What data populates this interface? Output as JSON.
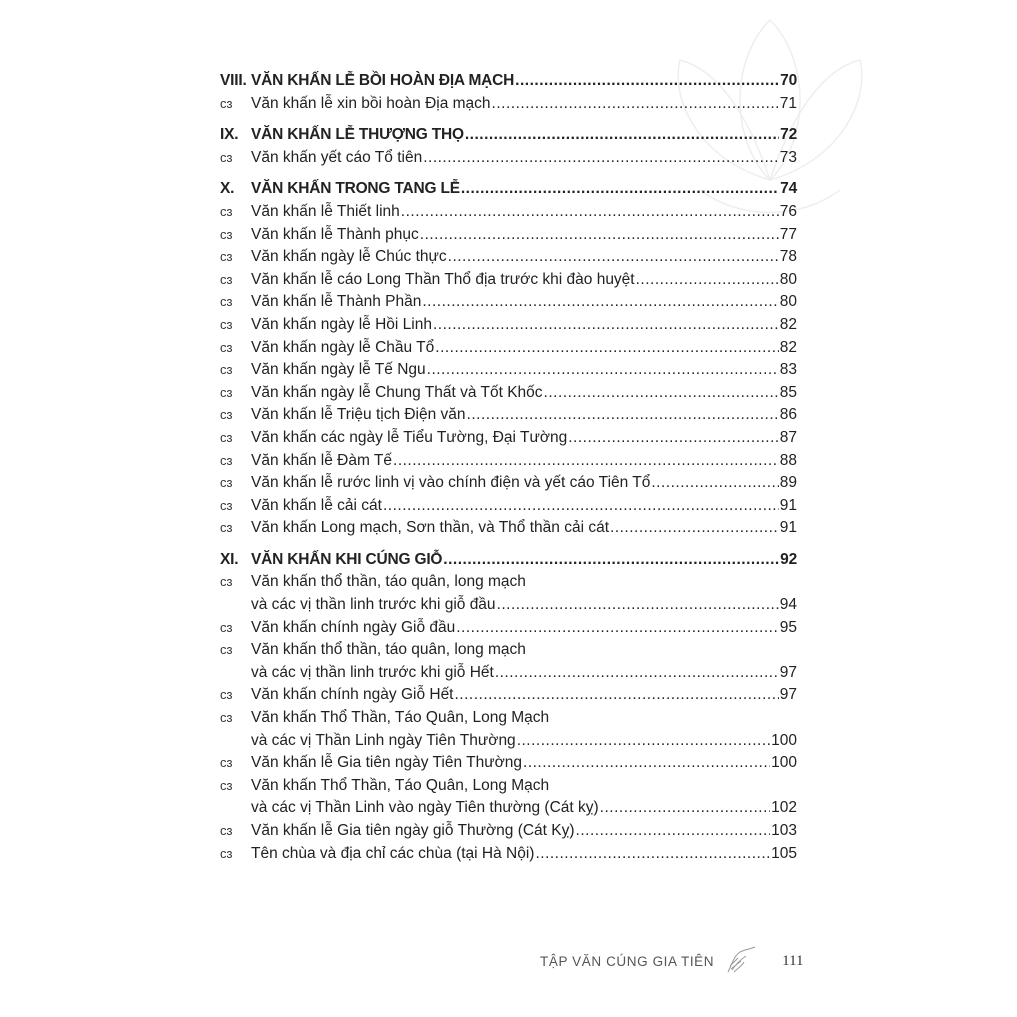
{
  "sections": [
    {
      "number": "VIII.",
      "title": "VĂN KHẤN LỄ BỒI HOÀN ĐỊA MẠCH",
      "page": "70",
      "items": [
        {
          "lines": [
            "Văn khấn lễ xin bồi hoàn Địa mạch"
          ],
          "page": "71"
        }
      ]
    },
    {
      "number": "IX.",
      "title": "VĂN KHẤN LỄ THƯỢNG THỌ",
      "page": "72",
      "items": [
        {
          "lines": [
            "Văn khấn yết cáo Tổ tiên"
          ],
          "page": "73"
        }
      ]
    },
    {
      "number": "X.",
      "title": "VĂN KHẤN TRONG TANG LỄ",
      "page": "74",
      "items": [
        {
          "lines": [
            "Văn khấn lễ Thiết linh"
          ],
          "page": "76"
        },
        {
          "lines": [
            "Văn khấn lễ Thành phục"
          ],
          "page": "77"
        },
        {
          "lines": [
            "Văn khấn ngày lễ Chúc thực"
          ],
          "page": "78"
        },
        {
          "lines": [
            "Văn khấn lễ cáo Long Thần Thổ địa trước khi đào huyệt"
          ],
          "page": "80"
        },
        {
          "lines": [
            "Văn khấn lễ Thành Phần"
          ],
          "page": "80"
        },
        {
          "lines": [
            "Văn khấn ngày lễ Hồi Linh"
          ],
          "page": "82"
        },
        {
          "lines": [
            "Văn khấn ngày lễ Chầu Tổ"
          ],
          "page": "82"
        },
        {
          "lines": [
            "Văn khấn ngày lễ Tế Ngu"
          ],
          "page": "83"
        },
        {
          "lines": [
            "Văn khấn ngày lễ Chung Thất và Tốt Khốc"
          ],
          "page": "85"
        },
        {
          "lines": [
            "Văn khấn lễ Triệu tịch Điện văn"
          ],
          "page": "86"
        },
        {
          "lines": [
            "Văn khấn các ngày lễ Tiểu Tường, Đại Tường"
          ],
          "page": "87"
        },
        {
          "lines": [
            "Văn khấn lễ Đàm Tế"
          ],
          "page": "88"
        },
        {
          "lines": [
            "Văn khấn lễ rước linh vị vào chính điện và yết cáo Tiên Tổ"
          ],
          "page": "89"
        },
        {
          "lines": [
            "Văn khấn lễ cải cát"
          ],
          "page": "91"
        },
        {
          "lines": [
            "Văn khấn Long mạch, Sơn thần, và Thổ thần cải cát"
          ],
          "page": "91"
        }
      ]
    },
    {
      "number": "XI.",
      "title": "VĂN KHẤN KHI CÚNG GIỖ",
      "page": "92",
      "items": [
        {
          "lines": [
            "Văn khấn thổ thần, táo quân, long mạch",
            "và các vị thần linh trước khi giỗ đầu"
          ],
          "page": "94"
        },
        {
          "lines": [
            "Văn khấn chính ngày Giỗ đầu"
          ],
          "page": "95"
        },
        {
          "lines": [
            "Văn khấn thổ thần, táo quân, long mạch",
            "và các vị thần linh trước khi giỗ Hết"
          ],
          "page": "97"
        },
        {
          "lines": [
            "Văn khấn chính ngày Giỗ Hết"
          ],
          "page": "97"
        },
        {
          "lines": [
            "Văn khấn Thổ Thần, Táo Quân, Long Mạch",
            "và các vị Thần Linh ngày Tiên Thường"
          ],
          "page": "100"
        },
        {
          "lines": [
            "Văn khấn lễ Gia tiên ngày Tiên Thường"
          ],
          "page": "100"
        },
        {
          "lines": [
            "Văn khấn Thổ Thần, Táo Quân, Long Mạch",
            "và các vị Thần Linh vào ngày Tiên thường (Cát kỵ)"
          ],
          "page": "102"
        },
        {
          "lines": [
            "Văn khấn lễ Gia tiên ngày giỗ Thường (Cát Kỵ)"
          ],
          "page": "103"
        },
        {
          "lines": [
            "Tên chùa và địa chỉ các chùa (tại Hà Nội)"
          ],
          "page": "105"
        }
      ]
    }
  ],
  "bullet_icon": "ornament-bullet",
  "footer": {
    "title": "TẬP VĂN CÚNG GIA TIÊN",
    "page": "111"
  }
}
